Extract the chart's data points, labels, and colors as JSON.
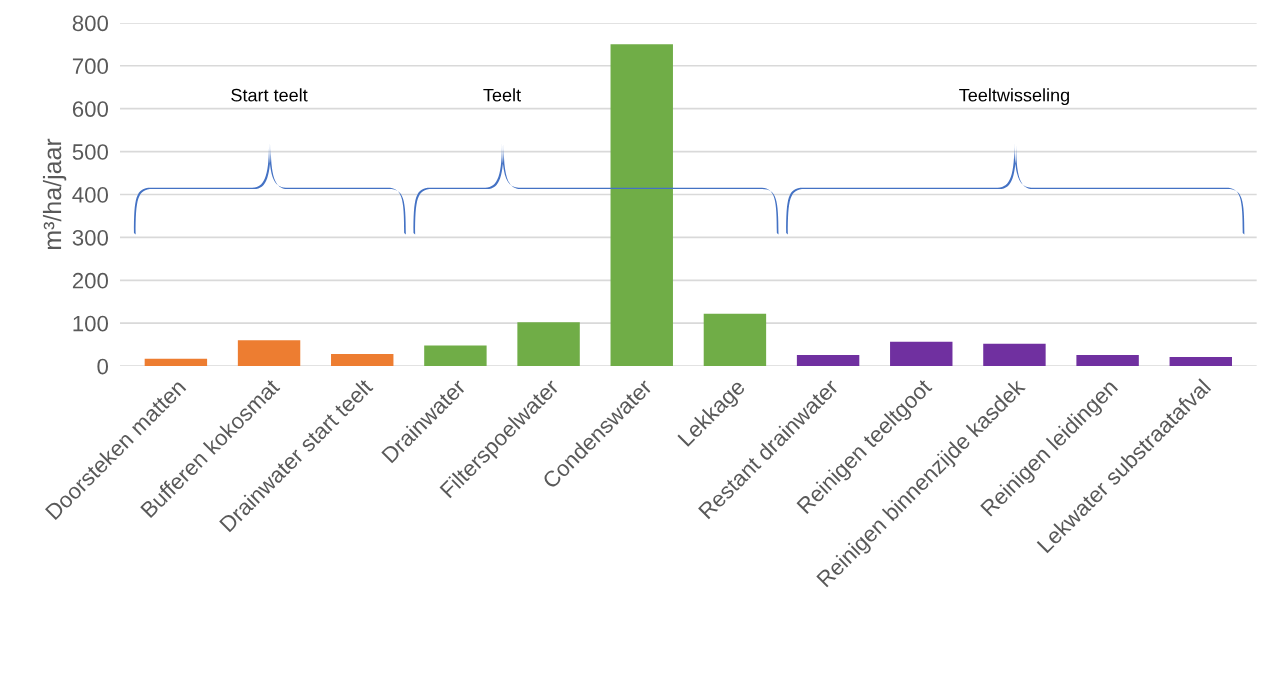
{
  "chart_data": {
    "type": "bar",
    "ylabel": "m³/ha/jaar",
    "categories": [
      "Doorsteken matten",
      "Bufferen kokosmat",
      "Drainwater start teelt",
      "Drainwater",
      "Filterspoelwater",
      "Condenswater",
      "Lekkage",
      "Restant drainwater",
      "Reinigen teeltgoot",
      "Reinigen binnenzijde kasdek",
      "Reinigen leidingen",
      "Lekwater substraatafval"
    ],
    "values": [
      17,
      60,
      28,
      48,
      102,
      750,
      122,
      26,
      57,
      52,
      26,
      21
    ],
    "colors": [
      "#ed7d31",
      "#ed7d31",
      "#ed7d31",
      "#70ad47",
      "#70ad47",
      "#70ad47",
      "#70ad47",
      "#7030a0",
      "#7030a0",
      "#7030a0",
      "#7030a0",
      "#7030a0"
    ],
    "ylim": [
      0,
      800
    ],
    "yticks": [
      0,
      100,
      200,
      300,
      400,
      500,
      600,
      700,
      800
    ],
    "grid": "y",
    "annotations": [
      "Start teelt",
      "Teelt",
      "Teeltwisseling"
    ]
  }
}
